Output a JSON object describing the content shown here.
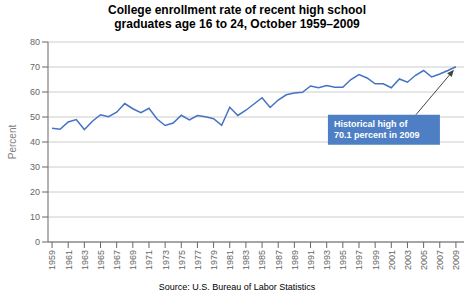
{
  "chart_data": {
    "type": "line",
    "title": "College enrollment rate of recent high school\ngraduates age 16 to 24, October 1959–2009",
    "source": "Source: U.S. Bureau of Labor Statistics",
    "ylabel": "Percent",
    "x": [
      1959,
      1960,
      1961,
      1962,
      1963,
      1964,
      1965,
      1966,
      1967,
      1968,
      1969,
      1970,
      1971,
      1972,
      1973,
      1974,
      1975,
      1976,
      1977,
      1978,
      1979,
      1980,
      1981,
      1982,
      1983,
      1984,
      1985,
      1986,
      1987,
      1988,
      1989,
      1990,
      1991,
      1992,
      1993,
      1994,
      1995,
      1996,
      1997,
      1998,
      1999,
      2000,
      2001,
      2002,
      2003,
      2004,
      2005,
      2006,
      2007,
      2008,
      2009
    ],
    "values": [
      45.5,
      45.1,
      48.0,
      49.0,
      45.0,
      48.3,
      50.9,
      50.1,
      51.9,
      55.4,
      53.3,
      51.7,
      53.5,
      49.2,
      46.6,
      47.6,
      50.7,
      48.8,
      50.6,
      50.1,
      49.3,
      46.7,
      53.9,
      50.6,
      52.7,
      55.2,
      57.7,
      53.8,
      56.8,
      58.9,
      59.6,
      59.9,
      62.4,
      61.7,
      62.6,
      61.9,
      61.9,
      65.0,
      67.0,
      65.6,
      63.3,
      63.3,
      61.7,
      65.2,
      63.9,
      66.7,
      68.6,
      66.0,
      67.2,
      68.6,
      70.1
    ],
    "color": "#4472C4",
    "xlim": [
      1958.5,
      2010
    ],
    "xticks": [
      1959,
      1961,
      1963,
      1965,
      1967,
      1969,
      1971,
      1973,
      1975,
      1977,
      1979,
      1981,
      1983,
      1985,
      1987,
      1989,
      1991,
      1993,
      1995,
      1997,
      1999,
      2001,
      2003,
      2005,
      2007,
      2009
    ],
    "ylim": [
      0,
      80
    ],
    "yticks": [
      0,
      10,
      20,
      30,
      40,
      50,
      60,
      70,
      80
    ],
    "grid": "y",
    "annotations": [
      {
        "text": "Historical high of\n70.1 percent in 2009",
        "x": 2009,
        "y": 70.1,
        "color": "#4e7fc4"
      }
    ]
  }
}
